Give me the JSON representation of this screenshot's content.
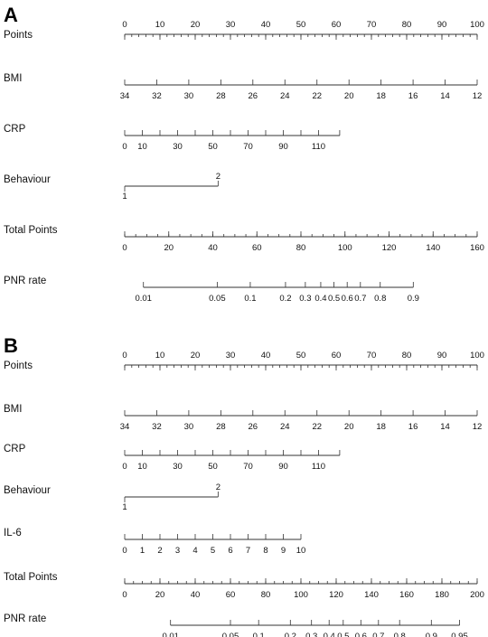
{
  "chart_data": [
    {
      "type": "nomogram",
      "panel_label": "A",
      "rows": [
        {
          "label": "Points",
          "ticks": [
            {
              "text": "0",
              "points": 0
            },
            {
              "text": "10",
              "points": 10
            },
            {
              "text": "20",
              "points": 20
            },
            {
              "text": "30",
              "points": 30
            },
            {
              "text": "40",
              "points": 40
            },
            {
              "text": "50",
              "points": 50
            },
            {
              "text": "60",
              "points": 60
            },
            {
              "text": "70",
              "points": 70
            },
            {
              "text": "80",
              "points": 80
            },
            {
              "text": "90",
              "points": 90
            },
            {
              "text": "100",
              "points": 100
            }
          ],
          "labels_above": true,
          "minor_step": 2
        },
        {
          "label": "BMI",
          "ticks": [
            {
              "text": "34",
              "points": 0
            },
            {
              "text": "32",
              "points": 9.09
            },
            {
              "text": "30",
              "points": 18.18
            },
            {
              "text": "28",
              "points": 27.27
            },
            {
              "text": "26",
              "points": 36.36
            },
            {
              "text": "24",
              "points": 45.45
            },
            {
              "text": "22",
              "points": 54.55
            },
            {
              "text": "20",
              "points": 63.64
            },
            {
              "text": "18",
              "points": 72.73
            },
            {
              "text": "16",
              "points": 81.82
            },
            {
              "text": "14",
              "points": 90.91
            },
            {
              "text": "12",
              "points": 100
            }
          ]
        },
        {
          "label": "CRP",
          "ticks": [
            {
              "text": "0",
              "points": 0
            },
            {
              "text": "10",
              "points": 5
            },
            {
              "text": "",
              "points": 10
            },
            {
              "text": "30",
              "points": 15
            },
            {
              "text": "",
              "points": 20
            },
            {
              "text": "50",
              "points": 25
            },
            {
              "text": "",
              "points": 30
            },
            {
              "text": "70",
              "points": 35
            },
            {
              "text": "",
              "points": 40
            },
            {
              "text": "90",
              "points": 45
            },
            {
              "text": "",
              "points": 50
            },
            {
              "text": "110",
              "points": 55
            },
            {
              "text": "",
              "points": 61
            }
          ]
        },
        {
          "label": "Behaviour",
          "type": "binary",
          "levels": [
            {
              "text": "1",
              "points": 0
            },
            {
              "text": "2",
              "points": 26.5
            }
          ]
        },
        {
          "label": "Total Points",
          "ticks": [
            {
              "text": "0",
              "points": 0
            },
            {
              "text": "20",
              "points": 20
            },
            {
              "text": "40",
              "points": 40
            },
            {
              "text": "60",
              "points": 60
            },
            {
              "text": "80",
              "points": 80
            },
            {
              "text": "100",
              "points": 100
            },
            {
              "text": "120",
              "points": 120
            },
            {
              "text": "140",
              "points": 140
            },
            {
              "text": "160",
              "points": 160
            }
          ],
          "range": [
            0,
            160
          ],
          "minor_step": 5
        },
        {
          "label": "PNR rate",
          "ticks": [
            {
              "text": "0.01",
              "points": 8.5
            },
            {
              "text": "0.05",
              "points": 42
            },
            {
              "text": "0.1",
              "points": 57
            },
            {
              "text": "0.2",
              "points": 73
            },
            {
              "text": "0.3",
              "points": 82
            },
            {
              "text": "0.4",
              "points": 89
            },
            {
              "text": "0.5",
              "points": 95
            },
            {
              "text": "0.6",
              "points": 101
            },
            {
              "text": "0.7",
              "points": 107
            },
            {
              "text": "0.8",
              "points": 116
            },
            {
              "text": "0.9",
              "points": 131
            }
          ],
          "range": [
            0,
            160
          ]
        }
      ]
    },
    {
      "type": "nomogram",
      "panel_label": "B",
      "rows": [
        {
          "label": "Points",
          "ticks": [
            {
              "text": "0",
              "points": 0
            },
            {
              "text": "10",
              "points": 10
            },
            {
              "text": "20",
              "points": 20
            },
            {
              "text": "30",
              "points": 30
            },
            {
              "text": "40",
              "points": 40
            },
            {
              "text": "50",
              "points": 50
            },
            {
              "text": "60",
              "points": 60
            },
            {
              "text": "70",
              "points": 70
            },
            {
              "text": "80",
              "points": 80
            },
            {
              "text": "90",
              "points": 90
            },
            {
              "text": "100",
              "points": 100
            }
          ],
          "labels_above": true,
          "minor_step": 2
        },
        {
          "label": "BMI",
          "ticks": [
            {
              "text": "34",
              "points": 0
            },
            {
              "text": "32",
              "points": 9.09
            },
            {
              "text": "30",
              "points": 18.18
            },
            {
              "text": "28",
              "points": 27.27
            },
            {
              "text": "26",
              "points": 36.36
            },
            {
              "text": "24",
              "points": 45.45
            },
            {
              "text": "22",
              "points": 54.55
            },
            {
              "text": "20",
              "points": 63.64
            },
            {
              "text": "18",
              "points": 72.73
            },
            {
              "text": "16",
              "points": 81.82
            },
            {
              "text": "14",
              "points": 90.91
            },
            {
              "text": "12",
              "points": 100
            }
          ]
        },
        {
          "label": "CRP",
          "ticks": [
            {
              "text": "0",
              "points": 0
            },
            {
              "text": "10",
              "points": 5
            },
            {
              "text": "",
              "points": 10
            },
            {
              "text": "30",
              "points": 15
            },
            {
              "text": "",
              "points": 20
            },
            {
              "text": "50",
              "points": 25
            },
            {
              "text": "",
              "points": 30
            },
            {
              "text": "70",
              "points": 35
            },
            {
              "text": "",
              "points": 40
            },
            {
              "text": "90",
              "points": 45
            },
            {
              "text": "",
              "points": 50
            },
            {
              "text": "110",
              "points": 55
            },
            {
              "text": "",
              "points": 61
            }
          ]
        },
        {
          "label": "Behaviour",
          "type": "binary",
          "levels": [
            {
              "text": "1",
              "points": 0
            },
            {
              "text": "2",
              "points": 26.5
            }
          ]
        },
        {
          "label": "IL-6",
          "ticks": [
            {
              "text": "0",
              "points": 0
            },
            {
              "text": "1",
              "points": 5
            },
            {
              "text": "2",
              "points": 10
            },
            {
              "text": "3",
              "points": 15
            },
            {
              "text": "4",
              "points": 20
            },
            {
              "text": "5",
              "points": 25
            },
            {
              "text": "6",
              "points": 30
            },
            {
              "text": "7",
              "points": 35
            },
            {
              "text": "8",
              "points": 40
            },
            {
              "text": "9",
              "points": 45
            },
            {
              "text": "10",
              "points": 50
            }
          ]
        },
        {
          "label": "Total Points",
          "ticks": [
            {
              "text": "0",
              "points": 0
            },
            {
              "text": "20",
              "points": 20
            },
            {
              "text": "40",
              "points": 40
            },
            {
              "text": "60",
              "points": 60
            },
            {
              "text": "80",
              "points": 80
            },
            {
              "text": "100",
              "points": 100
            },
            {
              "text": "120",
              "points": 120
            },
            {
              "text": "140",
              "points": 140
            },
            {
              "text": "160",
              "points": 160
            },
            {
              "text": "180",
              "points": 180
            },
            {
              "text": "200",
              "points": 200
            }
          ],
          "range": [
            0,
            200
          ],
          "minor_step": 5
        },
        {
          "label": "PNR rate",
          "ticks": [
            {
              "text": "0.01",
              "points": 13
            },
            {
              "text": "0.05",
              "points": 30
            },
            {
              "text": "0.1",
              "points": 38
            },
            {
              "text": "0.2",
              "points": 47
            },
            {
              "text": "0.3",
              "points": 53
            },
            {
              "text": "0.4",
              "points": 58
            },
            {
              "text": "0.5",
              "points": 62
            },
            {
              "text": "0.6",
              "points": 67
            },
            {
              "text": "0.7",
              "points": 72
            },
            {
              "text": "0.8",
              "points": 78
            },
            {
              "text": "0.9",
              "points": 87
            },
            {
              "text": "0.95",
              "points": 95
            }
          ],
          "range": [
            0,
            100
          ]
        }
      ]
    }
  ]
}
